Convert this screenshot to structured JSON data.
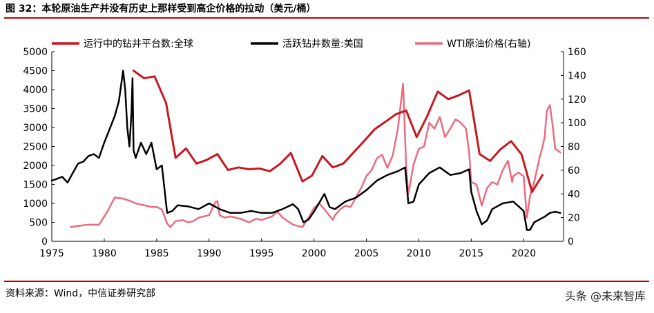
{
  "figure_title": "图 32：本轮原油生产并没有历史上那样受到高企价格的拉动（美元/桶）",
  "source_note": "资料来源：Wind，中信证券研究部",
  "watermark": "头条 @未来智库",
  "chart_data": {
    "type": "line",
    "legend_placement": "top",
    "grid": false,
    "xlim": [
      1975,
      2023.8
    ],
    "x_ticks": [
      1975,
      1980,
      1985,
      1990,
      1995,
      2000,
      2005,
      2010,
      2015,
      2020
    ],
    "ylim_left": [
      0,
      5000
    ],
    "y_ticks_left": [
      0,
      500,
      1000,
      1500,
      2000,
      2500,
      3000,
      3500,
      4000,
      4500,
      5000
    ],
    "ylim_right": [
      0,
      160
    ],
    "y_ticks_right": [
      0,
      20,
      40,
      60,
      80,
      100,
      120,
      140,
      160
    ],
    "series": [
      {
        "name": "运行中的钻井平台数:全球",
        "axis": "left",
        "color": "#c8171e",
        "x": [
          1982.8,
          1983.8,
          1984.8,
          1985.9,
          1986.8,
          1987.8,
          1988.8,
          1989.8,
          1990.8,
          1991.8,
          1992.8,
          1993.8,
          1994.8,
          1995.8,
          1996.8,
          1997.8,
          1998.9,
          1999.8,
          2000.8,
          2001.8,
          2002.8,
          2003.8,
          2004.8,
          2005.8,
          2006.8,
          2007.8,
          2008.8,
          2009.8,
          2010.8,
          2011.8,
          2012.8,
          2013.8,
          2014.8,
          2015.8,
          2016.8,
          2017.8,
          2018.8,
          2019.8,
          2020.8,
          2021.8
        ],
        "y": [
          4500,
          4300,
          4350,
          3650,
          2200,
          2450,
          2050,
          2150,
          2300,
          1880,
          1950,
          1900,
          1920,
          1850,
          2050,
          2330,
          1580,
          1730,
          2250,
          1950,
          2050,
          2350,
          2650,
          2960,
          3150,
          3350,
          3450,
          2750,
          3300,
          3950,
          3750,
          3850,
          3980,
          2300,
          2120,
          2430,
          2640,
          2290,
          1300,
          1750
        ]
      },
      {
        "name": "活跃钻井数量:美国",
        "axis": "left",
        "color": "#000000",
        "x": [
          1975,
          1975.5,
          1976,
          1976.5,
          1977,
          1977.5,
          1978,
          1978.5,
          1979,
          1979.5,
          1980,
          1980.5,
          1981,
          1981.4,
          1981.6,
          1981.8,
          1982,
          1982.2,
          1982.4,
          1982.6,
          1982.7,
          1982.8,
          1983,
          1983.5,
          1984,
          1984.5,
          1985,
          1985.5,
          1986,
          1986.5,
          1987,
          1988,
          1989,
          1990,
          1991,
          1992,
          1993,
          1994,
          1995,
          1996,
          1997,
          1998,
          1998.5,
          1999,
          1999.5,
          2000,
          2001,
          2001.5,
          2002,
          2003,
          2004,
          2005,
          2006,
          2007,
          2008,
          2008.7,
          2009,
          2009.5,
          2010,
          2011,
          2012,
          2013,
          2014,
          2014.8,
          2015,
          2015.5,
          2016,
          2016.5,
          2017,
          2018,
          2019,
          2020,
          2020.3,
          2020.6,
          2021,
          2022,
          2022.5,
          2023,
          2023.5
        ],
        "y": [
          1600,
          1650,
          1700,
          1550,
          1800,
          2050,
          2100,
          2250,
          2300,
          2200,
          2600,
          2950,
          3300,
          3700,
          4100,
          4500,
          4000,
          3000,
          2500,
          3400,
          4300,
          2400,
          2200,
          2600,
          2300,
          2600,
          1900,
          2000,
          750,
          800,
          950,
          920,
          850,
          1000,
          850,
          750,
          750,
          800,
          750,
          750,
          850,
          980,
          850,
          500,
          580,
          780,
          1250,
          900,
          850,
          1050,
          1150,
          1350,
          1600,
          1750,
          1850,
          1950,
          1000,
          1050,
          1500,
          1800,
          1950,
          1750,
          1800,
          1900,
          1300,
          800,
          450,
          550,
          850,
          1000,
          1050,
          800,
          300,
          300,
          500,
          650,
          750,
          780,
          750
        ]
      },
      {
        "name": "WTI原油价格(右轴)",
        "axis": "right",
        "color": "#ec6a80",
        "x": [
          1976.8,
          1977.5,
          1978.5,
          1979.5,
          1980.3,
          1981,
          1981.8,
          1982.5,
          1983,
          1983.5,
          1984,
          1984.5,
          1985,
          1985.5,
          1986,
          1986.3,
          1986.8,
          1987.5,
          1988,
          1988.5,
          1989,
          1990,
          1990.6,
          1990.8,
          1991,
          1991.5,
          1992,
          1993,
          1993.8,
          1994.5,
          1995,
          1996,
          1996.5,
          1997,
          1998,
          1998.9,
          1999.5,
          2000,
          2000.5,
          2001,
          2001.8,
          2002,
          2002.5,
          2003,
          2003.5,
          2004,
          2004.5,
          2005,
          2005.5,
          2006,
          2006.5,
          2007,
          2007.5,
          2008,
          2008.5,
          2008.8,
          2009,
          2009.5,
          2010,
          2010.5,
          2011,
          2011.5,
          2012,
          2012.5,
          2013,
          2013.5,
          2014,
          2014.5,
          2014.8,
          2015,
          2015.5,
          2016,
          2016.5,
          2017,
          2017.5,
          2018,
          2018.5,
          2018.9,
          2019,
          2019.5,
          2020,
          2020.3,
          2020.6,
          2021,
          2021.5,
          2021.8,
          2022,
          2022.2,
          2022.5,
          2022.8,
          2023,
          2023.5
        ],
        "y": [
          12,
          13,
          14,
          14,
          25,
          37,
          36,
          34,
          32,
          31,
          30,
          29,
          29,
          27,
          15,
          12,
          17,
          18,
          16,
          17,
          20,
          22,
          33,
          34,
          22,
          20,
          21,
          19,
          16,
          19,
          18,
          21,
          25,
          20,
          14,
          12,
          20,
          28,
          32,
          27,
          18,
          22,
          27,
          30,
          29,
          37,
          45,
          55,
          60,
          70,
          73,
          62,
          72,
          95,
          133,
          62,
          40,
          65,
          78,
          80,
          100,
          95,
          105,
          88,
          95,
          103,
          100,
          95,
          75,
          50,
          48,
          30,
          45,
          50,
          48,
          60,
          68,
          50,
          55,
          58,
          55,
          20,
          38,
          50,
          70,
          80,
          88,
          110,
          115,
          95,
          78,
          75
        ]
      }
    ]
  }
}
